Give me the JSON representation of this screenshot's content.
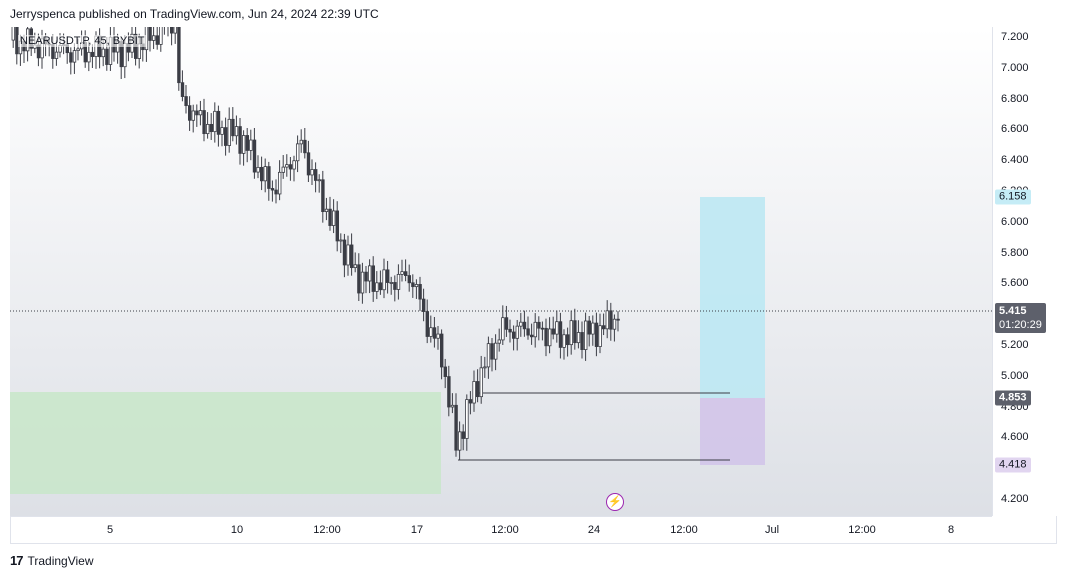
{
  "header": {
    "text": "Jerryspenca published on TradingView.com, Jun 24, 2024 22:39 UTC"
  },
  "symbol": {
    "text": "NEARUSDT.P, 45, BYBIT"
  },
  "price_scale": {
    "ticks": [
      "7.200",
      "7.000",
      "6.800",
      "6.600",
      "6.400",
      "6.200",
      "6.000",
      "5.800",
      "5.600",
      "5.400",
      "5.200",
      "5.000",
      "4.800",
      "4.600",
      "4.400",
      "4.200"
    ],
    "tick_values": [
      7.2,
      7.0,
      6.8,
      6.6,
      6.4,
      6.2,
      6.0,
      5.8,
      5.6,
      5.4,
      5.2,
      5.0,
      4.8,
      4.6,
      4.4,
      4.2
    ]
  },
  "time_scale": {
    "ticks": [
      "5",
      "10",
      "12:00",
      "17",
      "12:00",
      "24",
      "12:00",
      "Jul",
      "12:00",
      "8"
    ]
  },
  "badges": {
    "target": {
      "label": "6.158",
      "value": 6.158,
      "bg": "#c5ecf6",
      "fg": "#131722"
    },
    "current": {
      "label": "5.415",
      "value": 5.415,
      "timer": "01:20:29",
      "bg": "#5d606b",
      "fg": "#ffffff"
    },
    "entry": {
      "label": "4.853",
      "value": 4.853,
      "bg": "#5d606b",
      "fg": "#ffffff"
    },
    "stop": {
      "label": "4.418",
      "value": 4.418,
      "bg": "#e1d5f0",
      "fg": "#131722"
    }
  },
  "footer": {
    "logo": "17",
    "brand": "TradingView"
  },
  "colors": {
    "candle": "#3b3d45",
    "demand_zone": "#c8e6c9",
    "target_zone": "#bde8f3",
    "stop_zone": "#d1c4e9",
    "line": "#3b3d45"
  }
}
